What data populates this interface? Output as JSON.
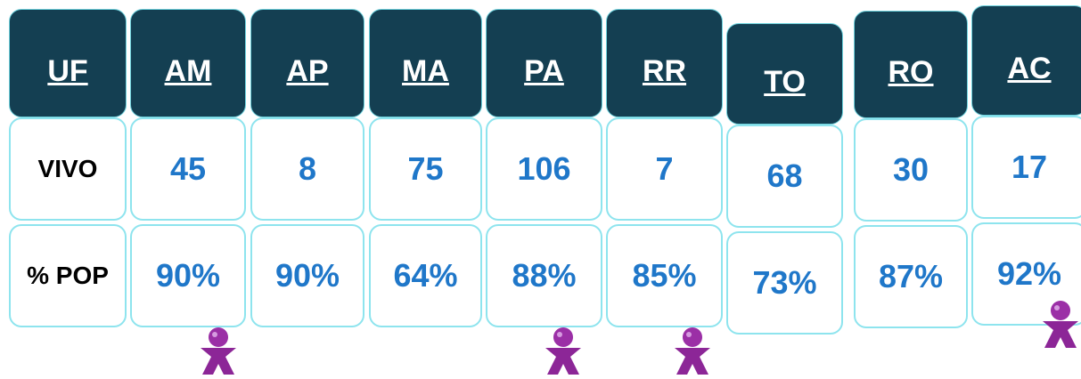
{
  "table": {
    "rows": [
      [
        "UF",
        "AM",
        "AP",
        "MA",
        "PA",
        "RR",
        "TO",
        "RO",
        "AC"
      ],
      [
        "VIVO",
        "45",
        "8",
        "75",
        "106",
        "7",
        "68",
        "30",
        "17"
      ],
      [
        "% POP",
        "90%",
        "90%",
        "64%",
        "88%",
        "85%",
        "73%",
        "87%",
        "92%"
      ]
    ]
  }
}
